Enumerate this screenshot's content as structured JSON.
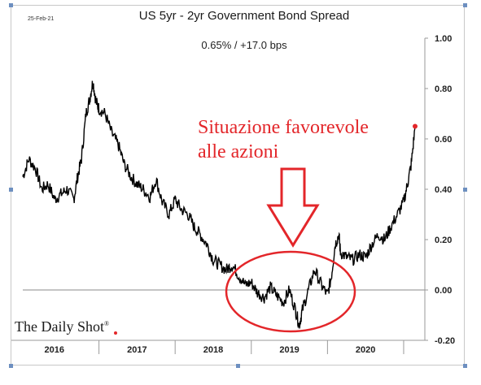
{
  "header": {
    "date": "25-Feb-21",
    "title": "US 5yr - 2yr Government Bond Spread",
    "subtitle": "0.65%  /  +17.0 bps"
  },
  "annotation": {
    "line1": "Situazione favorevole",
    "line2": "alle azioni",
    "color": "#e3262a"
  },
  "brand": {
    "name": "The Daily Shot",
    "mark": "®"
  },
  "chart_data": {
    "type": "line",
    "xlabel": "",
    "ylabel": "",
    "ylim": [
      -0.2,
      1.0
    ],
    "y_ticks": [
      "1.00",
      "0.80",
      "0.60",
      "0.40",
      "0.20",
      "0.00",
      "-0.20"
    ],
    "x_categories": [
      "2016",
      "2017",
      "2018",
      "2019",
      "2020"
    ],
    "xlim": [
      2016.0,
      2021.15
    ],
    "line_color": "#000000",
    "last_point_color": "#e3262a",
    "series": [
      {
        "x": [
          2016.0,
          2016.08,
          2016.17,
          2016.25,
          2016.33,
          2016.42,
          2016.5,
          2016.58,
          2016.67,
          2016.72,
          2016.77,
          2016.83,
          2016.88,
          2016.92,
          2016.96,
          2017.0,
          2017.08,
          2017.17,
          2017.25,
          2017.33,
          2017.42,
          2017.5,
          2017.58,
          2017.67,
          2017.75,
          2017.83,
          2017.92,
          2018.0,
          2018.08,
          2018.17,
          2018.25,
          2018.33,
          2018.42,
          2018.5,
          2018.58,
          2018.67,
          2018.75,
          2018.83,
          2018.92,
          2019.0,
          2019.08,
          2019.17,
          2019.25,
          2019.33,
          2019.42,
          2019.5,
          2019.58,
          2019.63,
          2019.67,
          2019.75,
          2019.83,
          2019.92,
          2020.0,
          2020.05,
          2020.1,
          2020.15,
          2020.17,
          2020.25,
          2020.33,
          2020.42,
          2020.5,
          2020.58,
          2020.67,
          2020.75,
          2020.83,
          2020.92,
          2021.0,
          2021.05,
          2021.1,
          2021.15
        ],
        "y": [
          0.45,
          0.52,
          0.48,
          0.4,
          0.42,
          0.36,
          0.38,
          0.4,
          0.36,
          0.45,
          0.52,
          0.7,
          0.76,
          0.83,
          0.75,
          0.72,
          0.7,
          0.62,
          0.58,
          0.5,
          0.45,
          0.42,
          0.4,
          0.37,
          0.44,
          0.35,
          0.3,
          0.36,
          0.32,
          0.3,
          0.25,
          0.22,
          0.18,
          0.12,
          0.1,
          0.08,
          0.1,
          0.06,
          0.02,
          0.03,
          -0.01,
          -0.03,
          0.01,
          -0.02,
          -0.05,
          0.0,
          -0.08,
          -0.14,
          -0.08,
          0.0,
          0.08,
          0.02,
          -0.02,
          0.05,
          0.18,
          0.22,
          0.15,
          0.13,
          0.12,
          0.14,
          0.13,
          0.18,
          0.22,
          0.2,
          0.25,
          0.3,
          0.35,
          0.42,
          0.5,
          0.65
        ]
      }
    ]
  }
}
